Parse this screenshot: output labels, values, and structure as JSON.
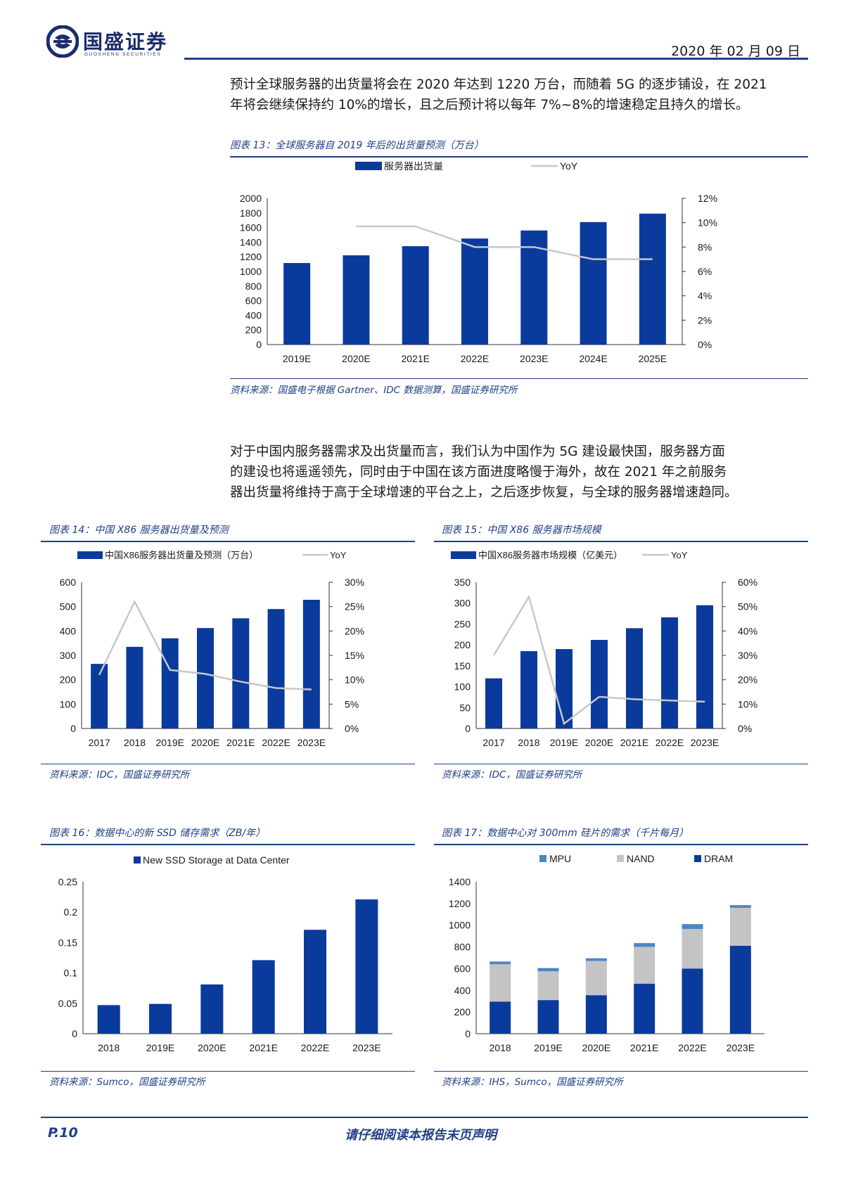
{
  "header": {
    "logo_text": "国盛证券",
    "logo_sub": "GUOSHENG SECURITIES",
    "date": "2020 年 02 月 09 日"
  },
  "paragraphs": {
    "p1_line1": "预计全球服务器的出货量将会在 2020 年达到 1220 万台，而随着 5G 的逐步铺设，在 2021",
    "p1_line2": "年将会继续保持约 10%的增长，且之后预计将以每年 7%~8%的增速稳定且持久的增长。",
    "p2_line1": "对于中国内服务器需求及出货量而言，我们认为中国作为 5G 建设最快国，服务器方面",
    "p2_line2": "的建设也将遥遥领先，同时由于中国在该方面进度略慢于海外，故在 2021 年之前服务",
    "p2_line3": "器出货量将维持于高于全球增速的平台之上，之后逐步恢复，与全球的服务器增速趋同。"
  },
  "figures": {
    "f13_title": "图表 13：全球服务器自 2019 年后的出货量预测（万台）",
    "f13_source": "资料来源：国盛电子根据 Gartner、IDC 数据测算，国盛证券研究所",
    "f14_title": "图表 14：中国 X86 服务器出货量及预测",
    "f14_source": "资料来源：IDC，国盛证券研究所",
    "f15_title": "图表 15：中国 X86 服务器市场规模",
    "f15_source": "资料来源：IDC，国盛证券研究所",
    "f16_title": "图表 16：数据中心的新 SSD 储存需求（ZB/年）",
    "f16_source": "资料来源：Sumco，国盛证券研究所",
    "f17_title": "图表 17：数据中心对 300mm 硅片的需求（千片每月）",
    "f17_source": "资料来源：IHS，Sumco，国盛证券研究所"
  },
  "footer": {
    "page": "P.10",
    "disclaimer": "请仔细阅读本报告末页声明"
  },
  "colors": {
    "brand": "#1f3f87",
    "bar": "#0a3a9c",
    "line": "#c8c8c8",
    "mpu": "#4a86c8",
    "nand": "#c4c4c4"
  },
  "chart_data": [
    {
      "id": "f13",
      "type": "bar",
      "categories": [
        "2019E",
        "2020E",
        "2021E",
        "2022E",
        "2023E",
        "2024E",
        "2025E"
      ],
      "series": [
        {
          "name": "服务器出货量",
          "axis": "left",
          "values": [
            1115,
            1220,
            1345,
            1450,
            1560,
            1675,
            1790
          ]
        },
        {
          "name": "YoY",
          "axis": "right",
          "type": "line",
          "values": [
            null,
            9.7,
            9.7,
            8.0,
            8.0,
            7.0,
            7.0
          ]
        }
      ],
      "ylim": [
        0,
        2000
      ],
      "yticks": [
        0,
        200,
        400,
        600,
        800,
        1000,
        1200,
        1400,
        1600,
        1800,
        2000
      ],
      "y2lim": [
        0,
        12
      ],
      "y2ticks": [
        0,
        2,
        4,
        6,
        8,
        10,
        12
      ],
      "y2_unit": "%",
      "legend": "top"
    },
    {
      "id": "f14",
      "type": "bar",
      "categories": [
        "2017",
        "2018",
        "2019E",
        "2020E",
        "2021E",
        "2022E",
        "2023E"
      ],
      "series": [
        {
          "name": "中国X86服务器出货量及预测（万台）",
          "axis": "left",
          "values": [
            265,
            335,
            370,
            412,
            452,
            490,
            528
          ]
        },
        {
          "name": "YoY",
          "axis": "right",
          "type": "line",
          "values": [
            11,
            26,
            12,
            11.2,
            9.6,
            8.3,
            8.0
          ]
        }
      ],
      "ylim": [
        0,
        600
      ],
      "yticks": [
        0,
        100,
        200,
        300,
        400,
        500,
        600
      ],
      "y2lim": [
        0,
        30
      ],
      "y2ticks": [
        0,
        5,
        10,
        15,
        20,
        25,
        30
      ],
      "y2_unit": "%",
      "legend": "top"
    },
    {
      "id": "f15",
      "type": "bar",
      "categories": [
        "2017",
        "2018",
        "2019E",
        "2020E",
        "2021E",
        "2022E",
        "2023E"
      ],
      "series": [
        {
          "name": "中国X86服务器市场规模（亿美元）",
          "axis": "left",
          "values": [
            120,
            185,
            190,
            212,
            240,
            266,
            295
          ]
        },
        {
          "name": "YoY",
          "axis": "right",
          "type": "line",
          "values": [
            30,
            54,
            2,
            13,
            12,
            11.5,
            11
          ]
        }
      ],
      "ylim": [
        0,
        350
      ],
      "yticks": [
        0,
        50,
        100,
        150,
        200,
        250,
        300,
        350
      ],
      "y2lim": [
        0,
        60
      ],
      "y2ticks": [
        0,
        10,
        20,
        30,
        40,
        50,
        60
      ],
      "y2_unit": "%",
      "legend": "top"
    },
    {
      "id": "f16",
      "type": "bar",
      "categories": [
        "2018",
        "2019E",
        "2020E",
        "2021E",
        "2022E",
        "2023E"
      ],
      "series": [
        {
          "name": "New SSD Storage at Data Center",
          "values": [
            0.047,
            0.049,
            0.081,
            0.121,
            0.171,
            0.221
          ]
        }
      ],
      "ylim": [
        0,
        0.25
      ],
      "yticks": [
        0,
        0.05,
        0.1,
        0.15,
        0.2,
        0.25
      ],
      "legend": "top"
    },
    {
      "id": "f17",
      "type": "stacked-bar",
      "categories": [
        "2018",
        "2019E",
        "2020E",
        "2021E",
        "2022E",
        "2023E"
      ],
      "series": [
        {
          "name": "DRAM",
          "values": [
            295,
            310,
            355,
            460,
            600,
            810
          ]
        },
        {
          "name": "NAND",
          "values": [
            345,
            265,
            315,
            340,
            365,
            350
          ]
        },
        {
          "name": "MPU",
          "values": [
            25,
            30,
            25,
            35,
            45,
            25
          ]
        }
      ],
      "ylim": [
        0,
        1400
      ],
      "yticks": [
        0,
        200,
        400,
        600,
        800,
        1000,
        1200,
        1400
      ],
      "legend": "top"
    }
  ]
}
